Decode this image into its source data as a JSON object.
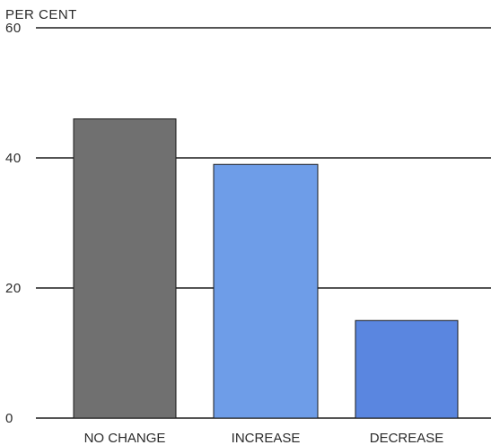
{
  "chart_data": {
    "type": "bar",
    "ylabel": "PER CENT",
    "categories": [
      "NO CHANGE",
      "INCREASE",
      "DECREASE"
    ],
    "values": [
      46,
      39,
      15
    ],
    "bar_colors": [
      "#707070",
      "#6e9de8",
      "#5a86e0"
    ],
    "ylim": [
      0,
      60
    ],
    "yticks": [
      0,
      20,
      40,
      60
    ],
    "grid": true
  }
}
